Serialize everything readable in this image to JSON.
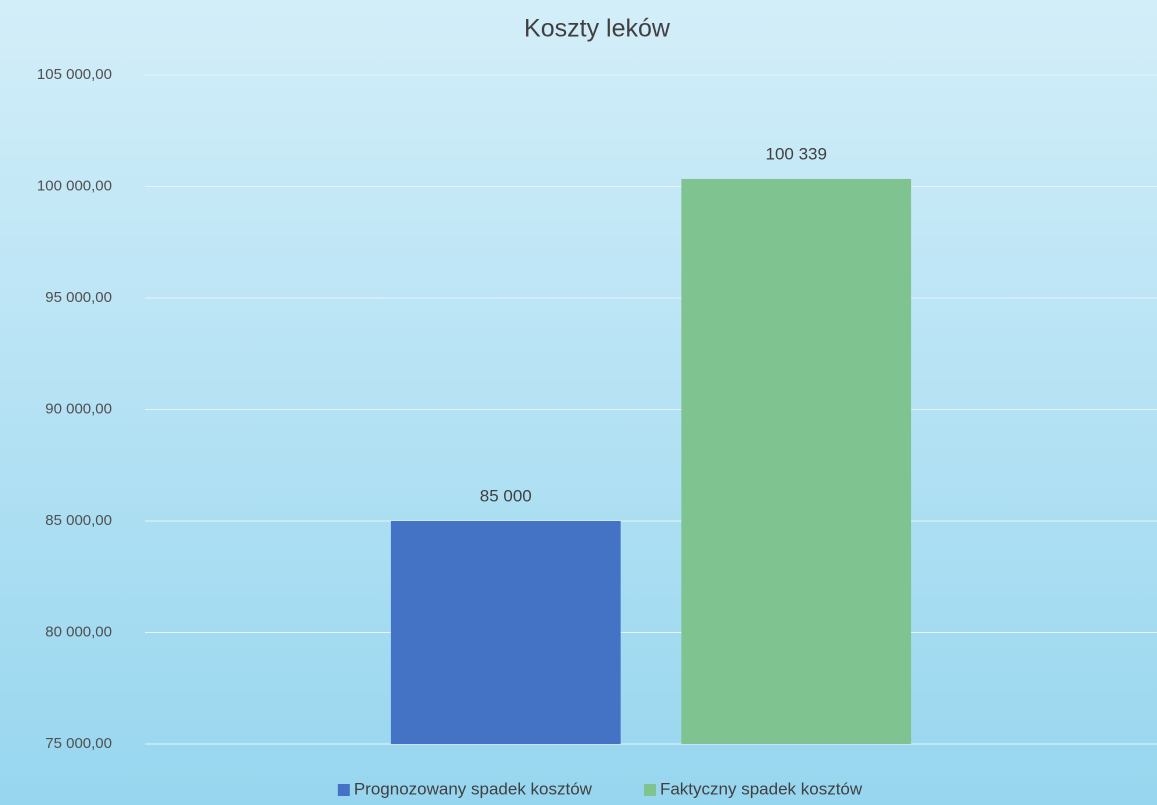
{
  "chart_data": {
    "type": "bar",
    "title": "Koszty leków",
    "categories": [
      null
    ],
    "series": [
      {
        "name": "Prognozowany spadek kosztów",
        "color": "#4472c4",
        "values": [
          85000
        ],
        "value_labels": [
          "85 000"
        ]
      },
      {
        "name": "Faktyczny spadek kosztów",
        "color": "#7fc391",
        "values": [
          100339
        ],
        "value_labels": [
          "100 339"
        ]
      }
    ],
    "ylim": [
      75000,
      105000
    ],
    "yticks": [
      {
        "value": 75000,
        "label": "75 000,00"
      },
      {
        "value": 80000,
        "label": "80 000,00"
      },
      {
        "value": 85000,
        "label": "85 000,00"
      },
      {
        "value": 90000,
        "label": "90 000,00"
      },
      {
        "value": 95000,
        "label": "95 000,00"
      },
      {
        "value": 100000,
        "label": "100 000,00"
      },
      {
        "value": 105000,
        "label": "105 000,00"
      }
    ],
    "grid": true,
    "legend": "bottom"
  }
}
